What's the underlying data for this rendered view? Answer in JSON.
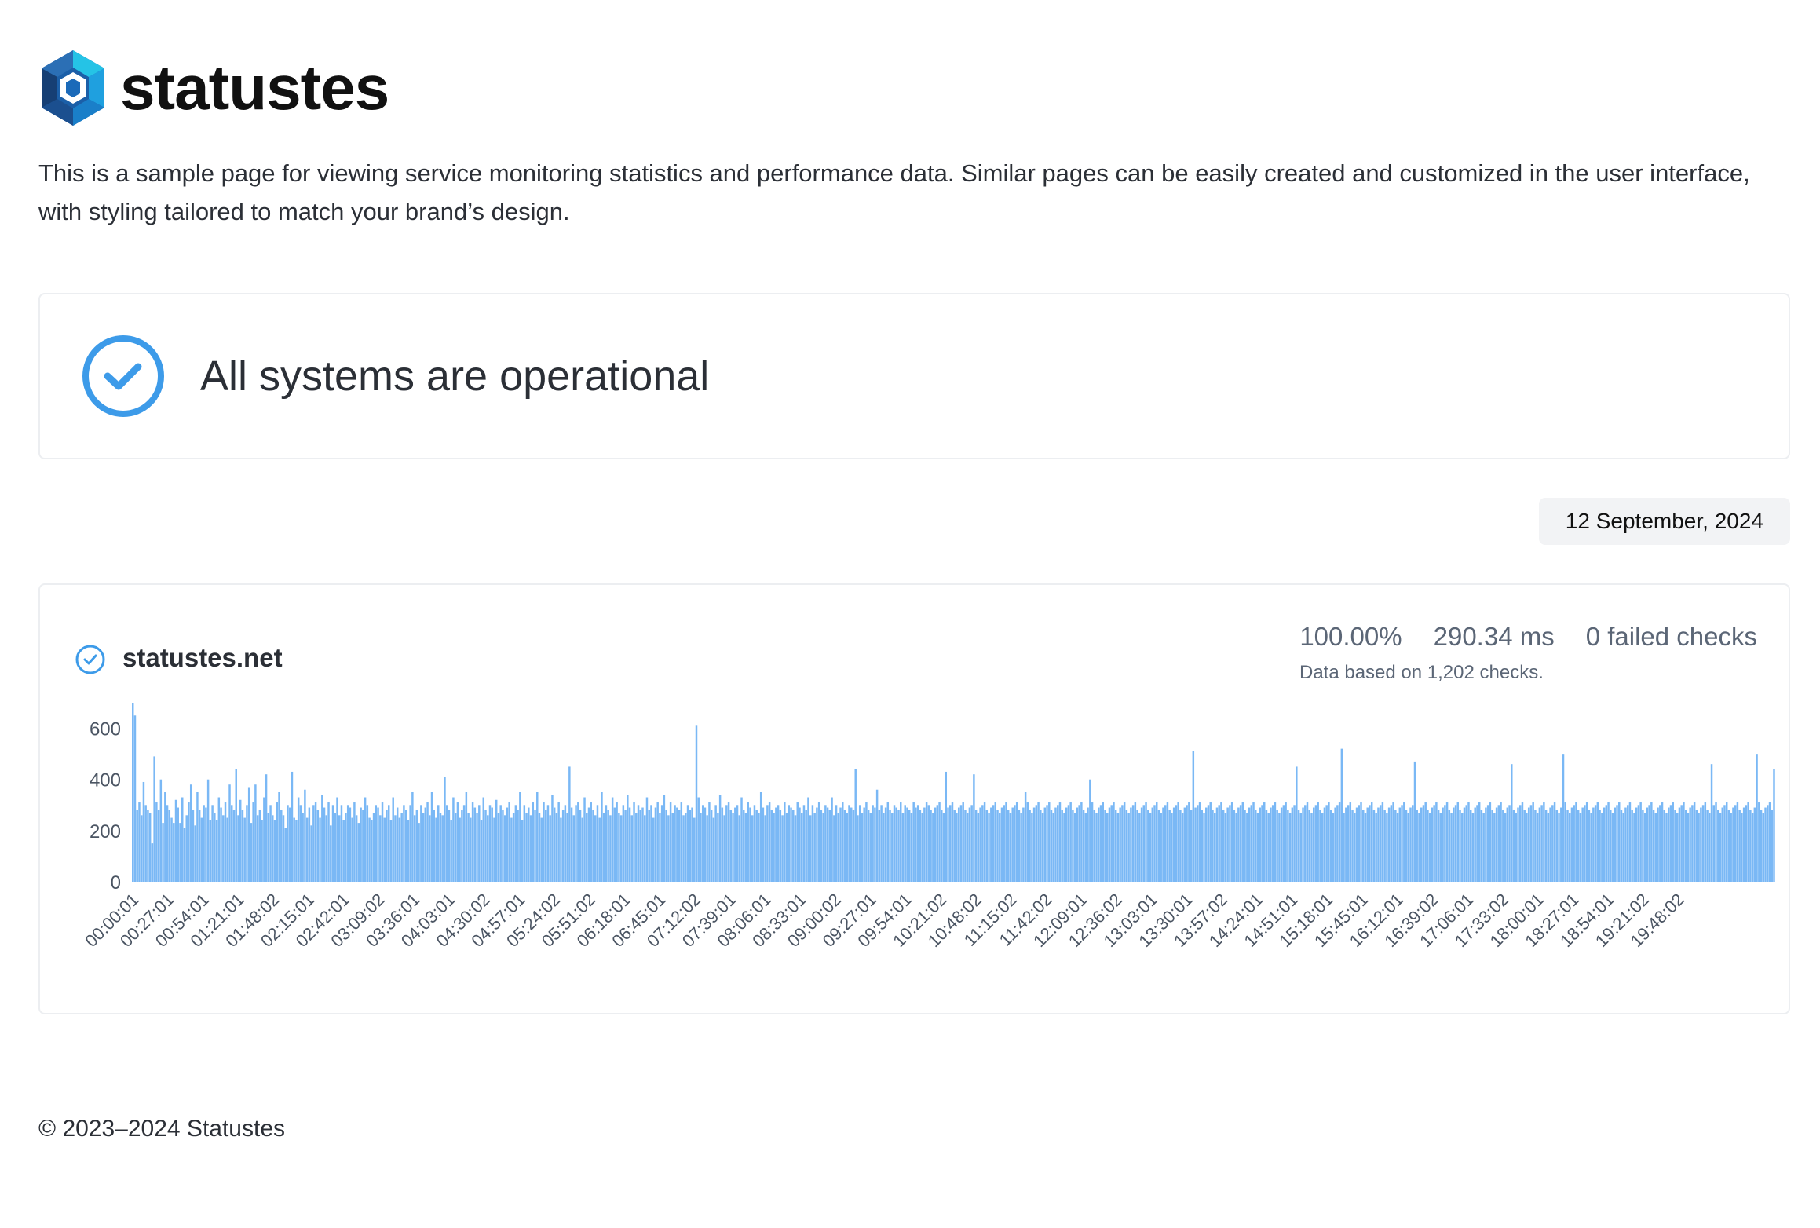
{
  "brand": {
    "name": "statustes",
    "logo_icon": "hexagon-logo-icon"
  },
  "intro": "This is a sample page for viewing service monitoring statistics and performance data. Similar pages can be easily created and customized in the user interface, with styling tailored to match your brand’s design.",
  "status": {
    "title": "All systems are operational",
    "icon": "check-circle-icon"
  },
  "date": "12 September, 2024",
  "monitor": {
    "name": "statustes.net",
    "icon": "check-circle-icon",
    "uptime": "100.00%",
    "avg_response": "290.34 ms",
    "failed": "0 failed checks",
    "note": "Data based on 1,202 checks."
  },
  "chart_data": {
    "type": "bar",
    "y_ticks": [
      0,
      200,
      400,
      600
    ],
    "ylim": [
      0,
      700
    ],
    "x_tick_labels": [
      "00:00:01",
      "00:27:01",
      "00:54:01",
      "01:21:01",
      "01:48:02",
      "02:15:01",
      "02:42:01",
      "03:09:02",
      "03:36:01",
      "04:03:01",
      "04:30:02",
      "04:57:01",
      "05:24:02",
      "05:51:02",
      "06:18:01",
      "06:45:01",
      "07:12:02",
      "07:39:01",
      "08:06:01",
      "08:33:01",
      "09:00:02",
      "09:27:01",
      "09:54:01",
      "10:21:02",
      "10:48:02",
      "11:15:02",
      "11:42:02",
      "12:09:01",
      "12:36:02",
      "13:03:01",
      "13:30:01",
      "13:57:02",
      "14:24:01",
      "14:51:01",
      "15:18:01",
      "15:45:01",
      "16:12:01",
      "16:39:02",
      "17:06:01",
      "17:33:02",
      "18:00:01",
      "18:27:01",
      "18:54:01",
      "19:21:02",
      "19:48:02"
    ],
    "bar_color": "#7ab8f5",
    "values": [
      700,
      650,
      280,
      310,
      260,
      390,
      300,
      280,
      270,
      150,
      490,
      310,
      280,
      400,
      230,
      350,
      300,
      280,
      250,
      230,
      320,
      290,
      230,
      330,
      210,
      260,
      310,
      380,
      280,
      220,
      350,
      280,
      250,
      300,
      290,
      400,
      240,
      300,
      270,
      240,
      330,
      290,
      260,
      310,
      250,
      380,
      300,
      280,
      440,
      260,
      320,
      280,
      250,
      300,
      370,
      230,
      310,
      380,
      260,
      280,
      240,
      330,
      420,
      270,
      300,
      260,
      240,
      310,
      350,
      280,
      260,
      210,
      300,
      290,
      430,
      250,
      240,
      330,
      300,
      270,
      360,
      250,
      290,
      220,
      300,
      310,
      280,
      250,
      340,
      290,
      260,
      310,
      220,
      300,
      270,
      330,
      260,
      300,
      240,
      270,
      300,
      290,
      250,
      310,
      260,
      230,
      290,
      280,
      330,
      300,
      250,
      240,
      270,
      300,
      290,
      260,
      310,
      250,
      280,
      300,
      240,
      330,
      260,
      290,
      250,
      270,
      300,
      280,
      240,
      300,
      350,
      260,
      280,
      230,
      300,
      270,
      290,
      310,
      260,
      350,
      280,
      250,
      300,
      270,
      260,
      410,
      300,
      280,
      240,
      330,
      270,
      310,
      250,
      280,
      300,
      350,
      270,
      250,
      310,
      290,
      270,
      300,
      240,
      330,
      280,
      260,
      300,
      290,
      250,
      320,
      270,
      300,
      280,
      260,
      290,
      310,
      250,
      270,
      300,
      280,
      350,
      240,
      300,
      270,
      290,
      260,
      310,
      280,
      350,
      270,
      250,
      310,
      280,
      300,
      260,
      340,
      290,
      270,
      310,
      250,
      280,
      300,
      270,
      450,
      290,
      260,
      300,
      310,
      280,
      250,
      330,
      270,
      290,
      310,
      280,
      260,
      300,
      250,
      350,
      270,
      300,
      280,
      260,
      330,
      290,
      310,
      270,
      260,
      300,
      280,
      340,
      290,
      260,
      310,
      270,
      300,
      280,
      290,
      260,
      330,
      280,
      300,
      250,
      290,
      310,
      270,
      300,
      340,
      280,
      260,
      310,
      270,
      300,
      290,
      280,
      310,
      260,
      270,
      300,
      280,
      290,
      250,
      610,
      330,
      270,
      300,
      290,
      260,
      310,
      280,
      250,
      300,
      270,
      340,
      290,
      260,
      300,
      310,
      280,
      270,
      290,
      300,
      260,
      330,
      280,
      270,
      310,
      290,
      260,
      300,
      280,
      270,
      350,
      290,
      260,
      300,
      310,
      280,
      270,
      290,
      300,
      280,
      260,
      310,
      270,
      300,
      290,
      280,
      260,
      310,
      290,
      270,
      300,
      280,
      330,
      260,
      300,
      270,
      290,
      310,
      280,
      270,
      300,
      290,
      280,
      330,
      260,
      300,
      270,
      290,
      310,
      280,
      270,
      300,
      290,
      280,
      440,
      260,
      300,
      270,
      290,
      310,
      280,
      270,
      300,
      290,
      360,
      280,
      300,
      270,
      290,
      310,
      280,
      270,
      300,
      290,
      280,
      310,
      270,
      300,
      290,
      280,
      270,
      310,
      290,
      300,
      280,
      270,
      290,
      310,
      300,
      280,
      270,
      290,
      300,
      310,
      280,
      270,
      430,
      290,
      300,
      310,
      280,
      270,
      290,
      300,
      310,
      280,
      270,
      290,
      300,
      420,
      280,
      270,
      290,
      300,
      310,
      280,
      270,
      290,
      300,
      310,
      280,
      270,
      290,
      300,
      310,
      280,
      270,
      290,
      300,
      310,
      280,
      270,
      290,
      350,
      310,
      280,
      270,
      290,
      300,
      310,
      280,
      270,
      290,
      300,
      310,
      280,
      270,
      290,
      300,
      310,
      280,
      270,
      290,
      300,
      310,
      280,
      270,
      290,
      300,
      310,
      280,
      270,
      290,
      400,
      310,
      280,
      270,
      290,
      300,
      310,
      280,
      270,
      290,
      300,
      310,
      280,
      270,
      290,
      300,
      310,
      280,
      270,
      290,
      300,
      310,
      280,
      270,
      290,
      300,
      310,
      280,
      270,
      290,
      300,
      310,
      280,
      270,
      290,
      300,
      310,
      280,
      270,
      290,
      300,
      310,
      280,
      270,
      290,
      300,
      310,
      280,
      510,
      290,
      300,
      310,
      280,
      270,
      290,
      300,
      310,
      280,
      270,
      290,
      300,
      310,
      280,
      270,
      290,
      300,
      310,
      280,
      270,
      290,
      300,
      310,
      280,
      270,
      290,
      300,
      310,
      280,
      270,
      290,
      300,
      310,
      280,
      270,
      290,
      300,
      310,
      280,
      270,
      290,
      300,
      310,
      280,
      270,
      290,
      300,
      450,
      280,
      270,
      290,
      300,
      310,
      280,
      270,
      290,
      300,
      310,
      280,
      270,
      290,
      300,
      310,
      280,
      270,
      290,
      300,
      310,
      520,
      270,
      290,
      300,
      310,
      280,
      270,
      290,
      300,
      310,
      280,
      270,
      290,
      300,
      310,
      280,
      270,
      290,
      300,
      310,
      280,
      270,
      290,
      300,
      310,
      280,
      270,
      290,
      300,
      310,
      280,
      270,
      290,
      300,
      470,
      280,
      270,
      290,
      300,
      310,
      280,
      270,
      290,
      300,
      310,
      280,
      270,
      290,
      300,
      310,
      280,
      270,
      290,
      300,
      310,
      280,
      270,
      290,
      300,
      310,
      280,
      270,
      290,
      300,
      310,
      280,
      270,
      290,
      300,
      310,
      280,
      270,
      290,
      300,
      310,
      280,
      270,
      290,
      300,
      460,
      280,
      270,
      290,
      300,
      310,
      280,
      270,
      290,
      300,
      310,
      280,
      270,
      290,
      300,
      310,
      280,
      270,
      290,
      300,
      310,
      280,
      270,
      290,
      500,
      310,
      280,
      270,
      290,
      300,
      310,
      280,
      270,
      290,
      300,
      310,
      280,
      270,
      290,
      300,
      310,
      280,
      270,
      290,
      300,
      310,
      280,
      270,
      290,
      300,
      310,
      280,
      270,
      290,
      300,
      310,
      280,
      270,
      290,
      300,
      310,
      280,
      270,
      290,
      300,
      310,
      280,
      270,
      290,
      300,
      310,
      280,
      270,
      290,
      300,
      310,
      280,
      270,
      290,
      300,
      310,
      280,
      270,
      290,
      300,
      310,
      280,
      270,
      290,
      300,
      310,
      280,
      270,
      460,
      300,
      310,
      280,
      270,
      290,
      300,
      310,
      280,
      270,
      290,
      300,
      310,
      280,
      270,
      290,
      300,
      310,
      280,
      270,
      290,
      500,
      310,
      280,
      270,
      290,
      300,
      310,
      280,
      440
    ]
  }
}
